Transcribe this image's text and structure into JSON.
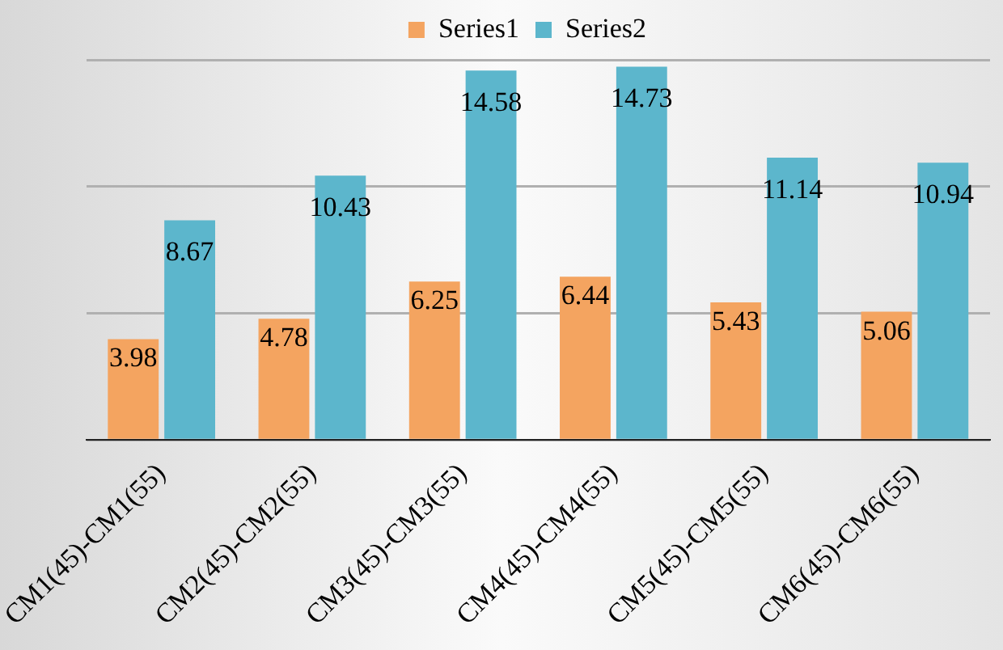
{
  "chart_data": {
    "type": "bar",
    "categories": [
      "CM1(45)-CM1(55)",
      "CM2(45)-CM2(55)",
      "CM3(45)-CM3(55)",
      "CM4(45)-CM4(55)",
      "CM5(45)-CM5(55)",
      "CM6(45)-CM6(55)"
    ],
    "series": [
      {
        "name": "Series1",
        "color": "#f4a460",
        "values": [
          3.98,
          4.78,
          6.25,
          6.44,
          5.43,
          5.06
        ]
      },
      {
        "name": "Series2",
        "color": "#5cb6cc",
        "values": [
          8.67,
          10.43,
          14.58,
          14.73,
          11.14,
          10.94
        ]
      }
    ],
    "ylim": [
      0,
      15
    ],
    "yticks": [
      {
        "value": 0,
        "label": null
      },
      {
        "value": 5,
        "label": null
      },
      {
        "value": 10,
        "label": null
      },
      {
        "value": 15,
        "label": null
      }
    ],
    "tick_labels": "x",
    "grid": "y",
    "legend": "top",
    "data_labels": true
  }
}
